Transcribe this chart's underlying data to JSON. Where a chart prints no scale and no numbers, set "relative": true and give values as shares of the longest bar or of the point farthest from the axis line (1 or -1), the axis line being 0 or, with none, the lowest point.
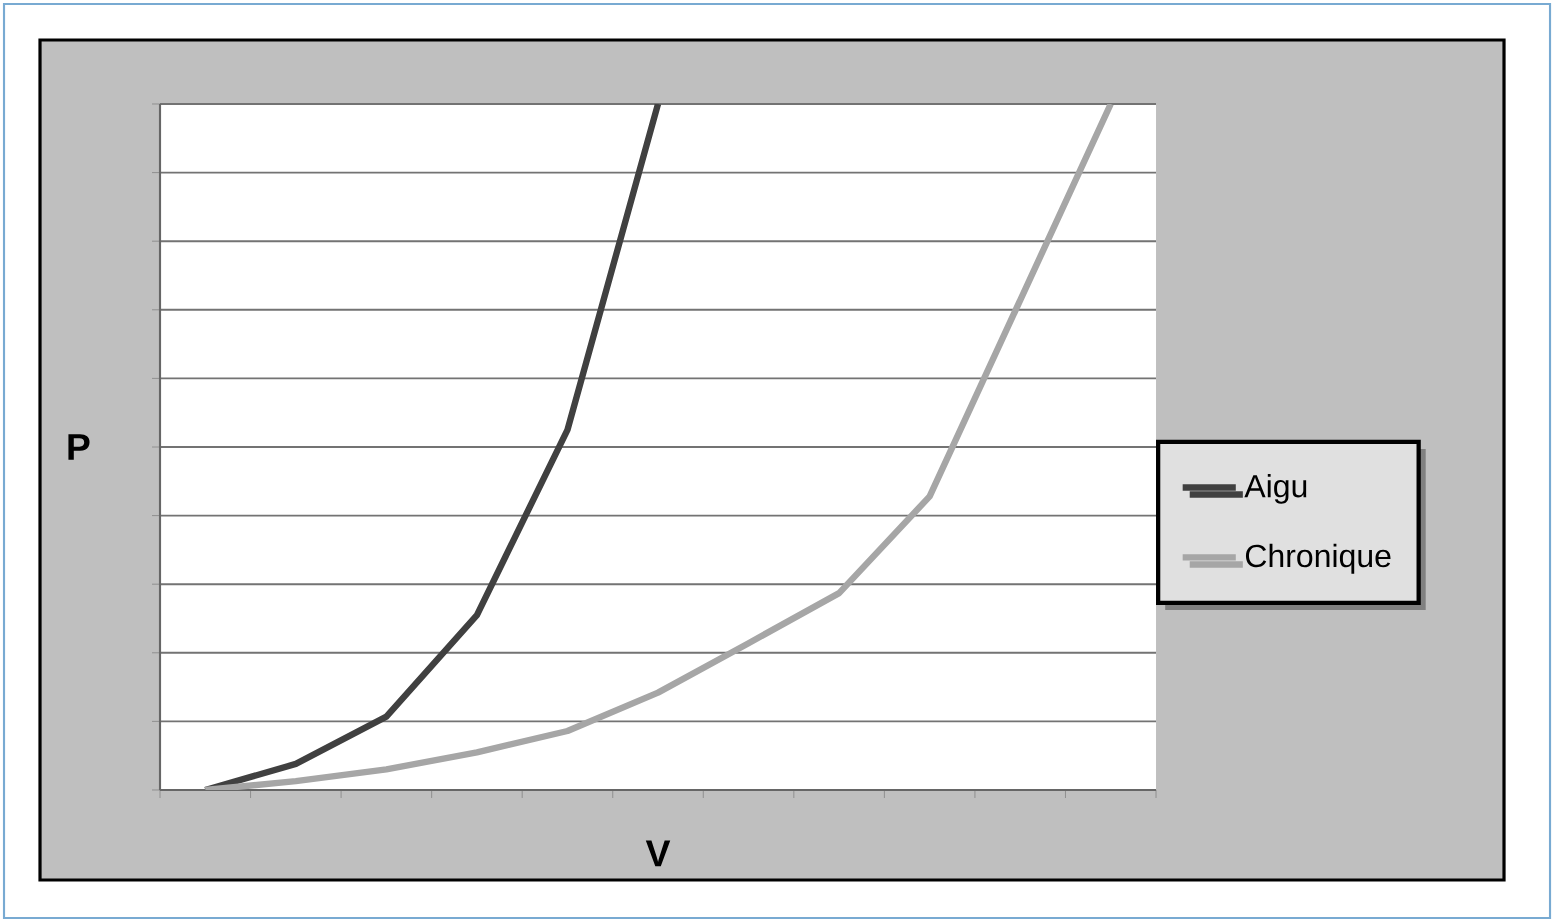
{
  "chart_data": {
    "type": "line",
    "relative": true,
    "xlabel": "V",
    "ylabel": "P",
    "grid": "y",
    "legend": "right",
    "marker": "none",
    "line_style": "solid",
    "categories": [
      null,
      null,
      null,
      null,
      null,
      null,
      null,
      null,
      null,
      null,
      null
    ],
    "series": [
      {
        "name": "Aigu",
        "color": "#404040",
        "values": [
          0,
          0.038,
          0.107,
          0.255,
          0.525,
          1.0,
          null,
          null,
          null,
          null,
          null
        ]
      },
      {
        "name": "Chronique",
        "color": "#a6a6a6",
        "values": [
          0,
          0.013,
          0.03,
          0.055,
          0.086,
          0.142,
          0.214,
          0.287,
          0.428,
          0.714,
          1.0
        ]
      }
    ]
  }
}
